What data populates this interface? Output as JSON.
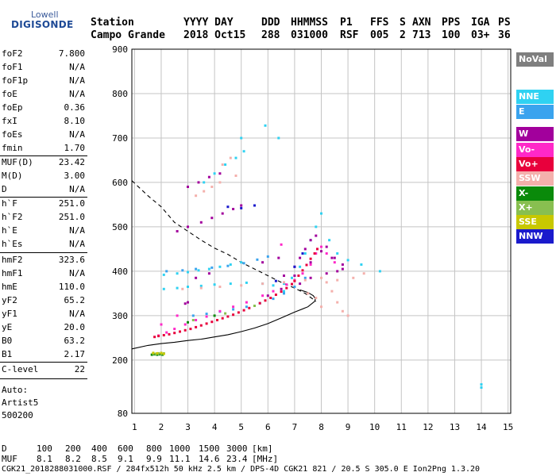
{
  "logo": {
    "top": "Lowell",
    "bottom": "DIGISONDE"
  },
  "header": {
    "row1": [
      {
        "key": "station",
        "text": "Station"
      },
      {
        "key": "yyyyday",
        "text": "YYYY DAY"
      },
      {
        "key": "ddd",
        "text": "DDD"
      },
      {
        "key": "hhmmss",
        "text": "HHMMSS"
      },
      {
        "key": "p1",
        "text": "P1"
      },
      {
        "key": "ffs",
        "text": "FFS"
      },
      {
        "key": "s",
        "text": "S"
      },
      {
        "key": "axn",
        "text": "AXN"
      },
      {
        "key": "pps",
        "text": "PPS"
      },
      {
        "key": "iga",
        "text": "IGA"
      },
      {
        "key": "ps",
        "text": "PS"
      }
    ],
    "row2": [
      {
        "key": "station",
        "text": "Campo Grande"
      },
      {
        "key": "yyyyday",
        "text": "2018 Oct15"
      },
      {
        "key": "ddd",
        "text": "288"
      },
      {
        "key": "hhmmss",
        "text": "031000"
      },
      {
        "key": "p1",
        "text": "RSF"
      },
      {
        "key": "ffs",
        "text": "005"
      },
      {
        "key": "s",
        "text": "2"
      },
      {
        "key": "axn",
        "text": "713"
      },
      {
        "key": "pps",
        "text": "100"
      },
      {
        "key": "iga",
        "text": "03+"
      },
      {
        "key": "ps",
        "text": "36"
      }
    ]
  },
  "params": [
    {
      "label": "foF2",
      "value": "7.800"
    },
    {
      "label": "foF1",
      "value": "N/A"
    },
    {
      "label": "foF1p",
      "value": "N/A"
    },
    {
      "label": "foE",
      "value": "N/A"
    },
    {
      "label": "foEp",
      "value": "0.36"
    },
    {
      "label": "fxI",
      "value": "8.10"
    },
    {
      "label": "foEs",
      "value": "N/A"
    },
    {
      "label": "fmin",
      "value": "1.70"
    },
    {
      "label": "MUF(D)",
      "value": "23.42"
    },
    {
      "label": "M(D)",
      "value": "3.00"
    },
    {
      "label": "D",
      "value": "N/A"
    },
    {
      "label": "h`F",
      "value": "251.0"
    },
    {
      "label": "h`F2",
      "value": "251.0"
    },
    {
      "label": "h`E",
      "value": "N/A"
    },
    {
      "label": "h`Es",
      "value": "N/A"
    },
    {
      "label": "hmF2",
      "value": "323.6"
    },
    {
      "label": "hmF1",
      "value": "N/A"
    },
    {
      "label": "hmE",
      "value": "110.0"
    },
    {
      "label": "yF2",
      "value": "65.2"
    },
    {
      "label": "yF1",
      "value": "N/A"
    },
    {
      "label": "yE",
      "value": "20.0"
    },
    {
      "label": "B0",
      "value": "63.2"
    },
    {
      "label": "B1",
      "value": "2.17"
    },
    {
      "label": "C-level",
      "value": "22"
    }
  ],
  "auto": {
    "line1": "Auto:",
    "line2": "Artist5",
    "line3": "500200"
  },
  "legend": [
    {
      "label": "NoVal",
      "color": "#7f7f7f",
      "text_color": "#ffffff"
    },
    {
      "label": "NNE",
      "color": "#2fd2f2",
      "text_color": "#ffffff"
    },
    {
      "label": "E",
      "color": "#3aa3ee",
      "text_color": "#ffffff"
    },
    {
      "label": "W",
      "color": "#a2009c",
      "text_color": "#ffffff"
    },
    {
      "label": "Vo-",
      "color": "#ff28c8",
      "text_color": "#ffffff"
    },
    {
      "label": "Vo+",
      "color": "#e8003c",
      "text_color": "#ffffff"
    },
    {
      "label": "SSW",
      "color": "#f4b0ac",
      "text_color": "#ffffff"
    },
    {
      "label": "X-",
      "color": "#0a8a0a",
      "text_color": "#ffffff"
    },
    {
      "label": "X+",
      "color": "#88bf50",
      "text_color": "#ffffff"
    },
    {
      "label": "SSE",
      "color": "#c8c800",
      "text_color": "#ffffff"
    },
    {
      "label": "NNW",
      "color": "#1a1acc",
      "text_color": "#ffffff"
    }
  ],
  "muf_table": {
    "d_label": "D",
    "d_values": [
      "100",
      "200",
      "400",
      "600",
      "800",
      "1000",
      "1500",
      "3000",
      "[km]"
    ],
    "muf_label": "MUF",
    "muf_values": [
      "8.1",
      "8.2",
      "8.5",
      "9.1",
      "9.9",
      "11.1",
      "14.6",
      "23.4",
      "[MHz]"
    ]
  },
  "footer": "CGK21_2018288031000.RSF / 284fx512h 50 kHz 2.5 km / DPS-4D CGK21 821 / 20.5 S 305.0 E Ion2Png 1.3.20",
  "chart_data": {
    "type": "scatter",
    "x_ticks": [
      "1",
      "2",
      "3",
      "4",
      "5",
      "6",
      "7",
      "8",
      "9",
      "10",
      "11",
      "12",
      "13",
      "14",
      "15"
    ],
    "y_ticks": [
      "80",
      "200",
      "300",
      "400",
      "500",
      "600",
      "700",
      "800",
      "900"
    ],
    "xlim": [
      0.9,
      15.1
    ],
    "ylim": [
      80,
      900
    ],
    "grid": true,
    "legend_position": "right",
    "series": [
      {
        "name": "NNE",
        "color": "#2fd2f2",
        "points": [
          [
            2.1,
            392
          ],
          [
            2.6,
            395
          ],
          [
            3.0,
            398
          ],
          [
            3.4,
            402
          ],
          [
            3.8,
            405
          ],
          [
            4.2,
            410
          ],
          [
            4.6,
            415
          ],
          [
            5.0,
            420
          ],
          [
            6.6,
            372
          ],
          [
            6.9,
            385
          ],
          [
            7.2,
            410
          ],
          [
            7.4,
            440
          ],
          [
            7.6,
            470
          ],
          [
            7.8,
            500
          ],
          [
            8.0,
            530
          ],
          [
            8.3,
            470
          ],
          [
            8.6,
            440
          ],
          [
            9.0,
            425
          ],
          [
            9.5,
            415
          ],
          [
            10.2,
            400
          ],
          [
            2.1,
            360
          ],
          [
            2.6,
            362
          ],
          [
            3.0,
            365
          ],
          [
            3.5,
            367
          ],
          [
            4.0,
            370
          ],
          [
            4.6,
            372
          ],
          [
            5.2,
            374
          ],
          [
            5.8,
            372
          ],
          [
            6.2,
            368
          ],
          [
            6.6,
            355
          ],
          [
            3.6,
            600
          ],
          [
            4.0,
            620
          ],
          [
            4.4,
            640
          ],
          [
            4.8,
            655
          ],
          [
            5.1,
            670
          ],
          [
            5.0,
            700
          ],
          [
            5.9,
            728
          ],
          [
            6.4,
            700
          ],
          [
            14.0,
            145
          ],
          [
            14.0,
            138
          ]
        ]
      },
      {
        "name": "E",
        "color": "#3aa3ee",
        "points": [
          [
            2.2,
            400
          ],
          [
            2.8,
            402
          ],
          [
            3.3,
            405
          ],
          [
            3.9,
            408
          ],
          [
            4.5,
            412
          ],
          [
            5.1,
            418
          ],
          [
            5.6,
            426
          ],
          [
            6.0,
            433
          ],
          [
            3.2,
            300
          ],
          [
            3.7,
            304
          ],
          [
            4.2,
            309
          ],
          [
            4.7,
            314
          ],
          [
            5.2,
            320
          ],
          [
            5.7,
            328
          ],
          [
            6.2,
            338
          ],
          [
            6.6,
            350
          ],
          [
            7.0,
            365
          ],
          [
            7.4,
            385
          ]
        ]
      },
      {
        "name": "W",
        "color": "#a2009c",
        "points": [
          [
            2.6,
            490
          ],
          [
            3.0,
            500
          ],
          [
            3.5,
            510
          ],
          [
            3.9,
            520
          ],
          [
            4.3,
            530
          ],
          [
            4.7,
            540
          ],
          [
            5.0,
            548
          ],
          [
            3.0,
            590
          ],
          [
            3.4,
            600
          ],
          [
            3.8,
            612
          ],
          [
            4.2,
            620
          ],
          [
            6.6,
            390
          ],
          [
            7.0,
            410
          ],
          [
            7.2,
            430
          ],
          [
            7.4,
            450
          ],
          [
            7.6,
            470
          ],
          [
            7.8,
            480
          ],
          [
            8.2,
            455
          ],
          [
            8.5,
            430
          ],
          [
            8.8,
            415
          ],
          [
            6.0,
            345
          ],
          [
            6.5,
            360
          ],
          [
            7.0,
            390
          ],
          [
            7.6,
            420
          ],
          [
            8.0,
            445
          ],
          [
            8.4,
            430
          ],
          [
            8.6,
            400
          ],
          [
            5.8,
            420
          ],
          [
            6.4,
            430
          ],
          [
            7.2,
            372
          ],
          [
            7.6,
            385
          ],
          [
            8.2,
            395
          ],
          [
            8.8,
            405
          ],
          [
            3.3,
            385
          ],
          [
            3.8,
            395
          ],
          [
            3.0,
            330
          ],
          [
            2.9,
            327
          ]
        ]
      },
      {
        "name": "Vo-",
        "color": "#ff28c8",
        "points": [
          [
            1.9,
            255
          ],
          [
            2.2,
            262
          ],
          [
            2.5,
            270
          ],
          [
            2.9,
            280
          ],
          [
            3.3,
            290
          ],
          [
            3.7,
            298
          ],
          [
            4.2,
            310
          ],
          [
            4.7,
            320
          ],
          [
            5.2,
            330
          ],
          [
            5.8,
            345
          ],
          [
            6.2,
            355
          ],
          [
            6.7,
            370
          ],
          [
            7.0,
            380
          ],
          [
            7.3,
            395
          ],
          [
            7.6,
            415
          ],
          [
            7.8,
            440
          ],
          [
            8.0,
            455
          ],
          [
            8.2,
            440
          ],
          [
            8.5,
            420
          ],
          [
            6.5,
            460
          ],
          [
            2.0,
            280
          ],
          [
            2.6,
            300
          ]
        ]
      },
      {
        "name": "Vo+",
        "color": "#e8003c",
        "points": [
          [
            1.75,
            252
          ],
          [
            1.9,
            254
          ],
          [
            2.1,
            256
          ],
          [
            2.3,
            258
          ],
          [
            2.5,
            261
          ],
          [
            2.7,
            264
          ],
          [
            2.9,
            267
          ],
          [
            3.1,
            270
          ],
          [
            3.3,
            274
          ],
          [
            3.5,
            278
          ],
          [
            3.7,
            282
          ],
          [
            3.9,
            286
          ],
          [
            4.1,
            290
          ],
          [
            4.3,
            294
          ],
          [
            4.5,
            298
          ],
          [
            4.7,
            302
          ],
          [
            4.9,
            307
          ],
          [
            5.1,
            312
          ],
          [
            5.3,
            317
          ],
          [
            5.5,
            322
          ],
          [
            5.7,
            328
          ],
          [
            5.9,
            334
          ],
          [
            6.1,
            340
          ],
          [
            6.3,
            347
          ],
          [
            6.5,
            354
          ],
          [
            6.7,
            362
          ],
          [
            6.9,
            371
          ],
          [
            7.0,
            378
          ],
          [
            7.15,
            390
          ],
          [
            7.3,
            402
          ],
          [
            7.45,
            414
          ],
          [
            7.6,
            428
          ],
          [
            7.75,
            440
          ],
          [
            7.85,
            450
          ]
        ]
      },
      {
        "name": "SSW",
        "color": "#f4b0ac",
        "points": [
          [
            3.3,
            570
          ],
          [
            3.6,
            580
          ],
          [
            3.9,
            590
          ],
          [
            4.2,
            600
          ],
          [
            4.8,
            615
          ],
          [
            4.3,
            640
          ],
          [
            4.6,
            655
          ],
          [
            2.8,
            360
          ],
          [
            3.5,
            362
          ],
          [
            4.2,
            365
          ],
          [
            5.0,
            368
          ],
          [
            5.8,
            372
          ],
          [
            6.6,
            375
          ],
          [
            7.4,
            380
          ],
          [
            8.0,
            385
          ],
          [
            8.4,
            355
          ],
          [
            8.6,
            330
          ],
          [
            8.8,
            310
          ],
          [
            9.0,
            300
          ],
          [
            8.2,
            375
          ],
          [
            8.6,
            380
          ],
          [
            9.2,
            385
          ],
          [
            9.6,
            395
          ],
          [
            7.5,
            350
          ],
          [
            7.8,
            340
          ],
          [
            8.0,
            320
          ]
        ]
      },
      {
        "name": "X-",
        "color": "#0a8a0a",
        "points": [
          [
            1.65,
            212
          ],
          [
            1.75,
            213
          ],
          [
            1.85,
            212
          ],
          [
            1.95,
            213
          ],
          [
            2.05,
            212
          ],
          [
            3.0,
            285
          ],
          [
            4.0,
            300
          ]
        ]
      },
      {
        "name": "X+",
        "color": "#88bf50",
        "points": [
          [
            1.7,
            215
          ],
          [
            1.8,
            214
          ],
          [
            1.9,
            215
          ],
          [
            2.0,
            214
          ],
          [
            2.1,
            215
          ],
          [
            3.2,
            290
          ],
          [
            4.4,
            305
          ],
          [
            5.5,
            322
          ]
        ]
      },
      {
        "name": "SSE",
        "color": "#c8c800",
        "points": [
          [
            1.7,
            216
          ],
          [
            1.85,
            215
          ],
          [
            2.0,
            216
          ],
          [
            2.1,
            214
          ]
        ]
      },
      {
        "name": "NNW",
        "color": "#1a1acc",
        "points": [
          [
            4.5,
            545
          ],
          [
            5.0,
            542
          ],
          [
            5.5,
            548
          ],
          [
            6.3,
            378
          ],
          [
            7.0,
            410
          ],
          [
            7.3,
            440
          ]
        ]
      }
    ],
    "profiles": [
      {
        "name": "solid",
        "style": "solid",
        "points": [
          [
            0.9,
            225
          ],
          [
            1.5,
            233
          ],
          [
            2.0,
            237
          ],
          [
            2.5,
            240
          ],
          [
            3.0,
            244
          ],
          [
            3.5,
            247
          ],
          [
            4.0,
            252
          ],
          [
            4.5,
            257
          ],
          [
            5.0,
            264
          ],
          [
            5.5,
            272
          ],
          [
            6.0,
            282
          ],
          [
            6.5,
            295
          ],
          [
            7.0,
            308
          ],
          [
            7.5,
            320
          ],
          [
            7.75,
            332
          ],
          [
            7.78,
            338
          ],
          [
            7.7,
            345
          ],
          [
            7.5,
            352
          ],
          [
            7.2,
            358
          ]
        ]
      },
      {
        "name": "dashed",
        "style": "dashed",
        "points": [
          [
            0.9,
            604
          ],
          [
            1.5,
            570
          ],
          [
            2.0,
            545
          ],
          [
            2.5,
            510
          ],
          [
            3.0,
            490
          ],
          [
            3.5,
            470
          ],
          [
            4.0,
            452
          ],
          [
            4.5,
            438
          ],
          [
            5.0,
            420
          ],
          [
            5.5,
            405
          ],
          [
            6.0,
            390
          ],
          [
            6.5,
            375
          ],
          [
            7.0,
            362
          ],
          [
            7.4,
            350
          ],
          [
            7.8,
            332
          ]
        ]
      }
    ]
  }
}
